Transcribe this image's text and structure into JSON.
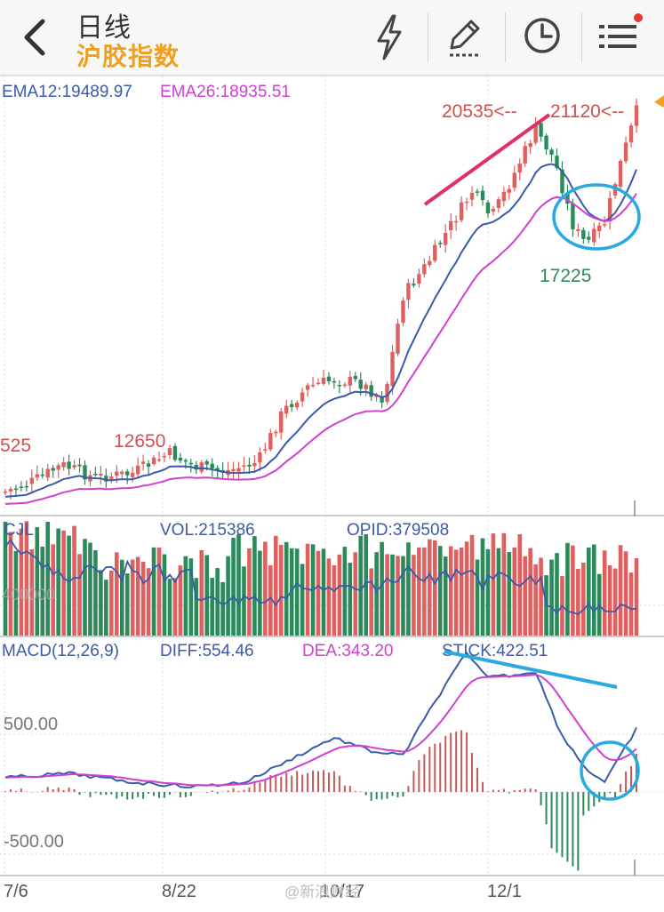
{
  "header": {
    "title": "日线",
    "subtitle": "沪胶指数",
    "buttons": [
      "back-icon",
      "lightning-icon",
      "edit-icon",
      "clock-icon",
      "menu-icon"
    ],
    "notification_color": "#e53935"
  },
  "price_panel": {
    "ema12_label": "EMA12:19489.97",
    "ema26_label": "EMA26:18935.51",
    "annotations": {
      "high1": "20535<--",
      "high2": "21120<--",
      "low1": "17225",
      "mid": "12650",
      "left_edge": "525"
    },
    "colors": {
      "up": "#e06060",
      "down": "#2a8a5a",
      "ema12": "#3a5aaa",
      "ema26": "#d040d0"
    }
  },
  "volume_panel": {
    "cjl_label": "CJL",
    "vol_label": "VOL:215386",
    "opid_label": "OPID:379508",
    "axis_label": "400000"
  },
  "macd_panel": {
    "macd_label": "MACD(12,26,9)",
    "diff_label": "DIFF:554.46",
    "dea_label": "DEA:343.20",
    "stick_label": "STICK:422.51",
    "level_pos": "500.00",
    "level_neg": "-500.00"
  },
  "x_axis": {
    "labels": [
      "7/6",
      "8/22",
      "10/17",
      "12/1"
    ]
  },
  "watermark": "@新浪财经"
}
